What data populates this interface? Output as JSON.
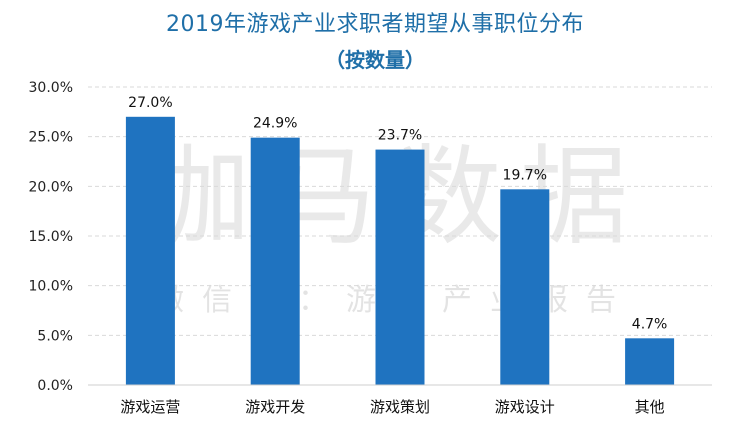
{
  "chart_data": {
    "type": "bar",
    "title": "2019年游戏产业求职者期望从事职位分布",
    "subtitle": "（按数量）",
    "categories": [
      "游戏运营",
      "游戏开发",
      "游戏策划",
      "游戏设计",
      "其他"
    ],
    "values": [
      27.0,
      24.9,
      23.7,
      19.7,
      4.7
    ],
    "value_labels": [
      "27.0%",
      "24.9%",
      "23.7%",
      "19.7%",
      "4.7%"
    ],
    "y_ticks": [
      0,
      5,
      10,
      15,
      20,
      25,
      30
    ],
    "y_tick_labels": [
      "0.0%",
      "5.0%",
      "10.0%",
      "15.0%",
      "20.0%",
      "25.0%",
      "30.0%"
    ],
    "ylim": [
      0,
      30
    ],
    "xlabel": "",
    "ylabel": "",
    "grid": true,
    "bar_color": "#1f73c0"
  },
  "watermark": {
    "main": "伽马数据",
    "sub": "微信号：游戏产业报告"
  },
  "colors": {
    "title": "#1f6fa8",
    "grid": "#d9d9d9"
  }
}
